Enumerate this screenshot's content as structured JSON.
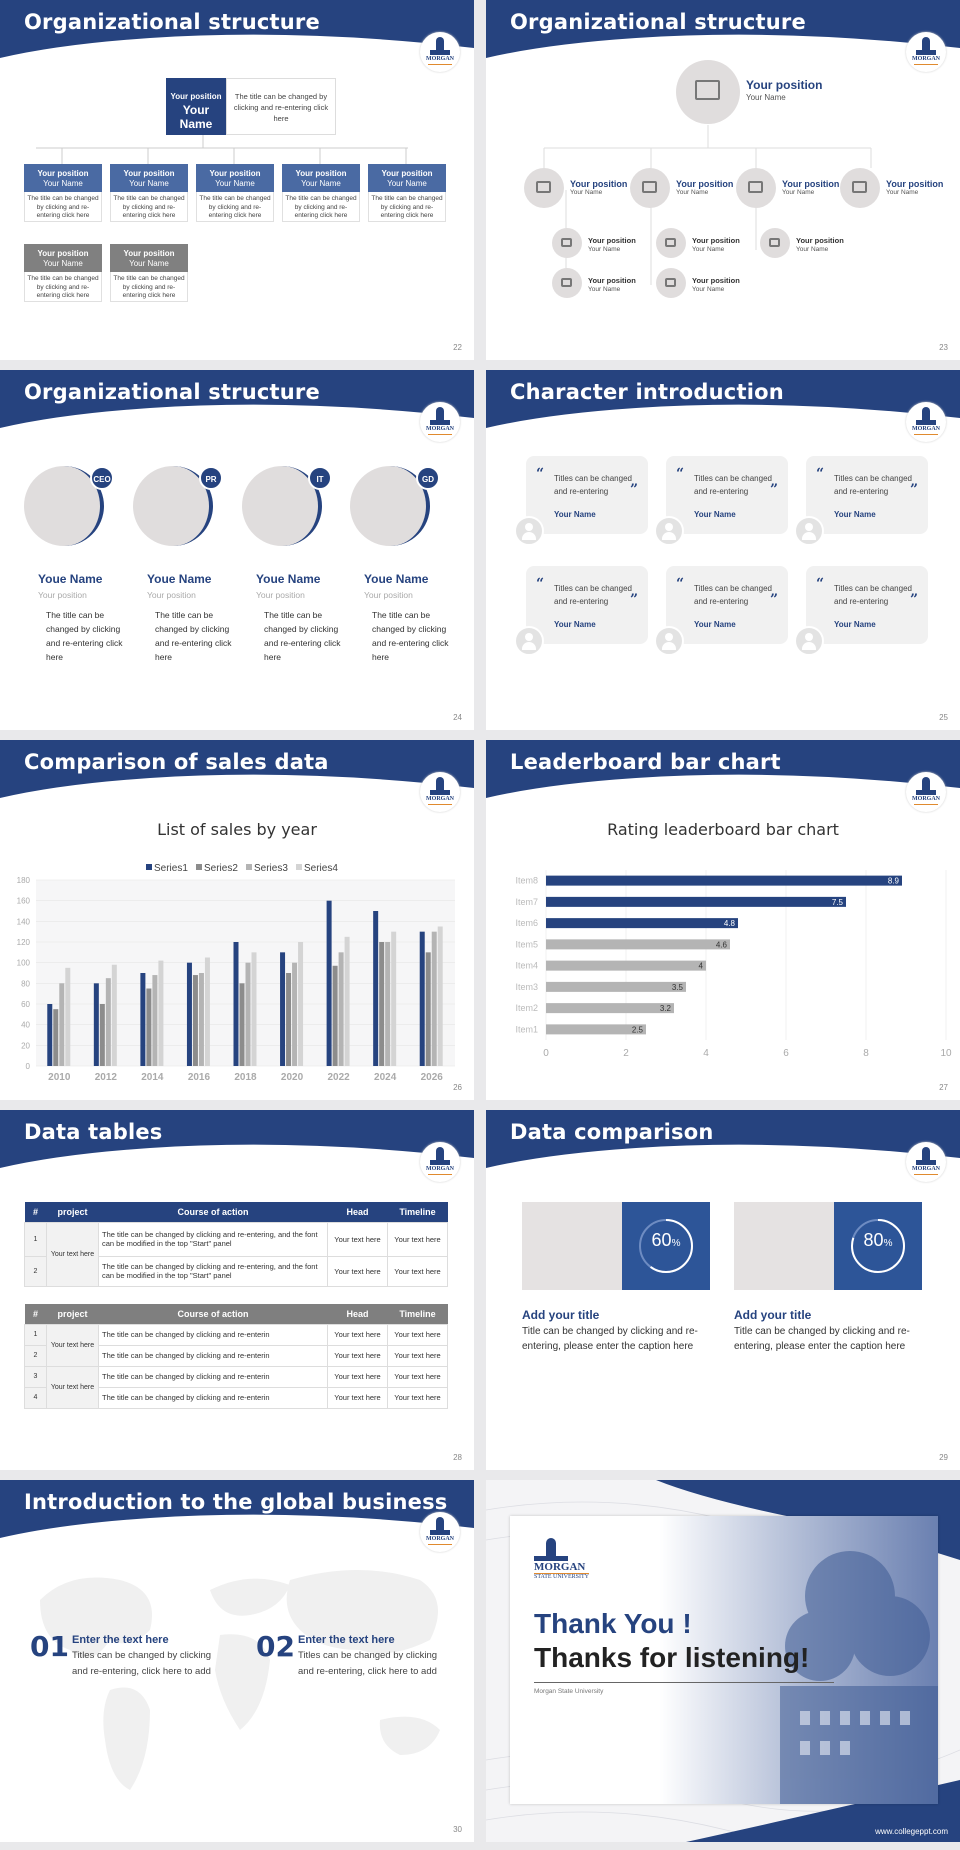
{
  "brand": {
    "primary": "#26437f",
    "accent": "#e08a2e",
    "logo_text": "MORGAN"
  },
  "slides": {
    "s22": {
      "title": "Organizational structure",
      "page": "22",
      "top": {
        "position": "Your position",
        "name": "Your Name",
        "desc": "The title can be changed by clicking and re-entering click here"
      },
      "cards": [
        {
          "position": "Your position",
          "name": "Your Name",
          "desc": "The title can be changed by clicking and re-entering click here",
          "color": "blue"
        },
        {
          "position": "Your position",
          "name": "Your Name",
          "desc": "The title can be changed by clicking and re-entering click here",
          "color": "blue"
        },
        {
          "position": "Your position",
          "name": "Your Name",
          "desc": "The title can be changed by clicking and re-entering click here",
          "color": "blue"
        },
        {
          "position": "Your position",
          "name": "Your Name",
          "desc": "The title can be changed by clicking and re-entering click here",
          "color": "blue"
        },
        {
          "position": "Your position",
          "name": "Your Name",
          "desc": "The title can be changed by clicking and re-entering click here",
          "color": "blue"
        },
        {
          "position": "Your position",
          "name": "Your Name",
          "desc": "The title can be changed by clicking and re-entering click here",
          "color": "gray"
        },
        {
          "position": "Your position",
          "name": "Your Name",
          "desc": "The title can be changed by clicking and re-entering click here",
          "color": "gray"
        }
      ]
    },
    "s23": {
      "title": "Organizational structure",
      "page": "23",
      "top": {
        "position": "Your position",
        "name": "Your Name"
      },
      "mid": [
        {
          "position": "Your position",
          "name": "Your Name"
        },
        {
          "position": "Your position",
          "name": "Your Name"
        },
        {
          "position": "Your position",
          "name": "Your Name"
        },
        {
          "position": "Your position",
          "name": "Your Name"
        }
      ],
      "sub": [
        {
          "position": "Your position",
          "name": "Your Name"
        },
        {
          "position": "Your position",
          "name": "Your Name"
        },
        {
          "position": "Your position",
          "name": "Your Name"
        },
        {
          "position": "Your position",
          "name": "Your Name"
        },
        {
          "position": "Your position",
          "name": "Your Name"
        }
      ]
    },
    "s24": {
      "title": "Organizational structure",
      "page": "24",
      "people": [
        {
          "badge": "CEO",
          "name": "Youe Name",
          "position": "Your position",
          "desc": "The title can be changed by clicking and re-entering click here"
        },
        {
          "badge": "PR",
          "name": "Youe Name",
          "position": "Your position",
          "desc": "The title can be changed by clicking and re-entering click here"
        },
        {
          "badge": "IT",
          "name": "Youe Name",
          "position": "Your position",
          "desc": "The title can be changed by clicking and re-entering click here"
        },
        {
          "badge": "GD",
          "name": "Youe Name",
          "position": "Your position",
          "desc": "The title can be changed by clicking and re-entering click here"
        }
      ]
    },
    "s25": {
      "title": "Character introduction",
      "page": "25",
      "quotes": [
        {
          "text": "Titles can be changed and re-entering",
          "name": "Your Name"
        },
        {
          "text": "Titles can be changed and re-entering",
          "name": "Your Name"
        },
        {
          "text": "Titles can be changed and re-entering",
          "name": "Your Name"
        },
        {
          "text": "Titles can be changed and re-entering",
          "name": "Your Name"
        },
        {
          "text": "Titles can be changed and re-entering",
          "name": "Your Name"
        },
        {
          "text": "Titles can be changed and re-entering",
          "name": "Your Name"
        }
      ]
    },
    "s26": {
      "title": "Comparison of sales data",
      "page": "26"
    },
    "s27": {
      "title": "Leaderboard bar chart",
      "page": "27"
    },
    "s28": {
      "title": "Data tables",
      "page": "28",
      "headers": [
        "#",
        "project",
        "Course of action",
        "Head",
        "Timeline"
      ],
      "table1": {
        "project": "Your text here",
        "rows": [
          {
            "idx": "1",
            "action": "The title can be changed by clicking and re-entering, and the font can be modified in the top \"Start\" panel",
            "head": "Your text here",
            "timeline": "Your text here"
          },
          {
            "idx": "2",
            "action": "The title can be changed by clicking and re-entering, and the font can be modified in the top \"Start\" panel",
            "head": "Your text here",
            "timeline": "Your text here"
          }
        ]
      },
      "table2": {
        "project_a": "Your text here",
        "project_b": "Your text here",
        "rows": [
          {
            "idx": "1",
            "action": "The title can be changed by clicking and re-enterin",
            "head": "Your text here",
            "timeline": "Your text here"
          },
          {
            "idx": "2",
            "action": "The title can be changed by clicking and re-enterin",
            "head": "Your text here",
            "timeline": "Your text here"
          },
          {
            "idx": "3",
            "action": "The title can be changed by clicking and re-enterin",
            "head": "Your text here",
            "timeline": "Your text here"
          },
          {
            "idx": "4",
            "action": "The title can be changed by clicking and re-enterin",
            "head": "Your text here",
            "timeline": "Your text here"
          }
        ]
      }
    },
    "s29": {
      "title": "Data comparison",
      "page": "29",
      "items": [
        {
          "pct": 60,
          "pct_label": "60",
          "pct_unit": "%",
          "title": "Add your title",
          "desc": "Title can be changed by clicking and re-entering, please enter the caption here"
        },
        {
          "pct": 80,
          "pct_label": "80",
          "pct_unit": "%",
          "title": "Add your title",
          "desc": "Title can be changed by clicking and re-entering, please enter the caption here"
        }
      ]
    },
    "s30": {
      "title": "Introduction to the global business",
      "page": "30",
      "items": [
        {
          "num": "01",
          "title": "Enter the text here",
          "desc": "Titles can be changed by clicking and re-entering, click here to add"
        },
        {
          "num": "02",
          "title": "Enter the text here",
          "desc": "Titles can be changed by clicking and re-entering, click here to add"
        }
      ]
    },
    "s31": {
      "logo_line1": "MORGAN",
      "logo_line2": "STATE UNIVERSITY",
      "line1": "Thank You !",
      "line2": "Thanks for listening!",
      "org": "Morgan State University",
      "url": "www.collegeppt.com"
    }
  },
  "chart_data": [
    {
      "type": "bar",
      "title": "List of sales by year",
      "categories": [
        "2010",
        "2012",
        "2014",
        "2016",
        "2018",
        "2020",
        "2022",
        "2024",
        "2026"
      ],
      "series": [
        {
          "name": "Series1",
          "color": "#26437f",
          "values": [
            60,
            80,
            90,
            100,
            120,
            110,
            160,
            150,
            130
          ]
        },
        {
          "name": "Series2",
          "color": "#8c8c8c",
          "values": [
            55,
            60,
            75,
            88,
            80,
            90,
            97,
            120,
            110
          ]
        },
        {
          "name": "Series3",
          "color": "#b4b4b4",
          "values": [
            80,
            85,
            88,
            90,
            100,
            100,
            110,
            120,
            130
          ]
        },
        {
          "name": "Series4",
          "color": "#d4d4d4",
          "values": [
            95,
            98,
            102,
            105,
            110,
            120,
            125,
            130,
            135
          ]
        }
      ],
      "yticks": [
        "0",
        "20",
        "40",
        "60",
        "80",
        "100",
        "120",
        "140",
        "160",
        "180"
      ],
      "ylim": [
        0,
        180
      ],
      "legend": "top"
    },
    {
      "type": "bar",
      "orientation": "horizontal",
      "title": "Rating leaderboard bar chart",
      "categories": [
        "Item8",
        "Item7",
        "Item6",
        "Item5",
        "Item4",
        "Item3",
        "Item2",
        "Item1"
      ],
      "values": [
        8.9,
        7.5,
        4.8,
        4.6,
        4,
        3.5,
        3.2,
        2.5
      ],
      "value_labels": [
        "8.9",
        "7.5",
        "4.8",
        "4.6",
        "4",
        "3.5",
        "3.2",
        "2.5"
      ],
      "colors": [
        "#26437f",
        "#26437f",
        "#26437f",
        "#b4b4b4",
        "#b4b4b4",
        "#b4b4b4",
        "#b4b4b4",
        "#b4b4b4"
      ],
      "xticks": [
        "0",
        "2",
        "4",
        "6",
        "8",
        "10"
      ],
      "xlim": [
        0,
        10
      ]
    }
  ]
}
